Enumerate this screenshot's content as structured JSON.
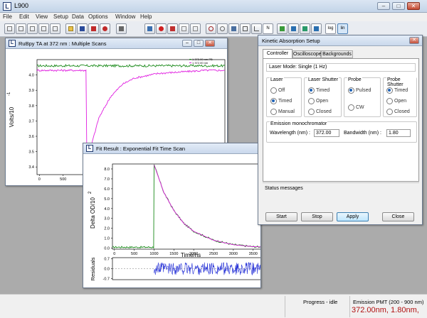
{
  "app": {
    "title": "L900",
    "icon_letter": "L"
  },
  "window_buttons": [
    "–",
    "□",
    "✕"
  ],
  "menu": [
    "File",
    "Edit",
    "View",
    "Setup",
    "Data",
    "Options",
    "Window",
    "Help"
  ],
  "toolbar": {
    "log_label": "log",
    "lin_label": "lin",
    "n_label": "N"
  },
  "scan_window": {
    "title": "RuBpy TA at 372 nm : Multiple Scans",
    "ylabel": "Volts/10",
    "ylabel_exp": "-1",
    "legend": [
      "1 372.00 nm PB",
      "1 372.00 nm"
    ],
    "colors": {
      "pb": "#1a8a1a",
      "trace": "#e01ee0"
    }
  },
  "fit_window": {
    "title": "Fit Result : Exponential Fit Time Scan",
    "ylabel": "Delta OD/10",
    "ylabel_exp": "2",
    "xlabel": "Time/ns",
    "residuals_label": "Residuals",
    "colors": {
      "data": "#1a8a1a",
      "fit": "#e01ee0",
      "residuals": "#1f2bd6"
    }
  },
  "kinetic": {
    "title": "Kinetic Absorption Setup",
    "tabs": [
      "Controller",
      "Oscilloscope",
      "Backgrounds"
    ],
    "laser_mode": "Laser Mode: Single (1 Hz)",
    "groups": {
      "laser": {
        "label": "Laser",
        "options": [
          "Off",
          "Timed",
          "Manual"
        ],
        "selected": 1
      },
      "shutter": {
        "label": "Laser Shutter",
        "options": [
          "Timed",
          "Open",
          "Closed"
        ],
        "selected": 0
      },
      "probe": {
        "label": "Probe",
        "options": [
          "Pulsed",
          "CW"
        ],
        "selected": 0
      },
      "probe_shutter": {
        "label": "Probe Shutter",
        "options": [
          "Timed",
          "Open",
          "Closed"
        ],
        "selected": 0
      }
    },
    "emission": {
      "label": "Emission monochromator",
      "wavelength_label": "Wavelength (nm) :",
      "wavelength_value": "372.00",
      "bandwidth_label": "Bandwidth (nm) :",
      "bandwidth_value": "1.80"
    },
    "status_label": "Status messages",
    "buttons": {
      "start": "Start",
      "stop": "Stop",
      "apply": "Apply",
      "close": "Close"
    }
  },
  "statusbar": {
    "progress": "Progress - idle",
    "detector": "Emission PMT (200 - 900 nm)",
    "readout": "372.00nm,  1.80nm,"
  },
  "chart_data": [
    {
      "type": "line",
      "title": "RuBpy TA at 372 nm : Multiple Scans",
      "xlabel": "",
      "ylabel": "Volts/10^-1",
      "xlim": [
        -50,
        3900
      ],
      "ylim": [
        3.35,
        4.1
      ],
      "xticks": [
        0,
        500,
        1000,
        1500,
        2000,
        2500,
        3000,
        3500
      ],
      "yticks": [
        3.4,
        3.5,
        3.6,
        3.7,
        3.8,
        3.9,
        4.0
      ],
      "legend": "top-right",
      "series": [
        {
          "name": "1 372.00 nm PB",
          "x": [
            -50,
            500,
            1000,
            1500,
            2000,
            2500,
            3000,
            3500,
            3900
          ],
          "y": [
            4.06,
            4.06,
            4.06,
            4.06,
            4.06,
            4.06,
            4.06,
            4.06,
            4.06
          ]
        },
        {
          "name": "1 372.00 nm",
          "x": [
            -50,
            500,
            980,
            1000,
            1100,
            1250,
            1500,
            1750,
            2000,
            2500,
            3000,
            3500,
            3900
          ],
          "y": [
            4.03,
            4.03,
            4.03,
            3.37,
            3.55,
            3.72,
            3.86,
            3.94,
            3.98,
            4.01,
            4.02,
            4.03,
            4.03
          ]
        }
      ]
    },
    {
      "type": "line",
      "title": "Fit Result : Exponential Fit Time Scan",
      "xlabel": "Time/ns",
      "ylabel": "Delta OD/10^2",
      "xlim": [
        -50,
        3900
      ],
      "ylim": [
        -0.1,
        8.5
      ],
      "xticks": [
        0,
        500,
        1000,
        1500,
        2000,
        2500,
        3000,
        3500
      ],
      "yticks": [
        0,
        1,
        2,
        3,
        4,
        5,
        6,
        7,
        8
      ],
      "series": [
        {
          "name": "data",
          "x": [
            -50,
            500,
            990,
            1000,
            1250,
            1500,
            1750,
            2000,
            2500,
            3000,
            3500,
            3900
          ],
          "y": [
            0.1,
            0.1,
            0.1,
            8.4,
            5.6,
            3.8,
            2.5,
            1.7,
            0.8,
            0.35,
            0.15,
            0.1
          ]
        },
        {
          "name": "fit",
          "x": [
            1000,
            1250,
            1500,
            1750,
            2000,
            2500,
            3000,
            3500,
            3900
          ],
          "y": [
            8.4,
            5.6,
            3.8,
            2.5,
            1.7,
            0.8,
            0.35,
            0.15,
            0.1
          ]
        }
      ],
      "residuals": {
        "ylim": [
          -0.77,
          0.77
        ],
        "yticks": [
          0.7,
          0.0,
          -0.7
        ],
        "x_start": 1000,
        "x_end": 3900
      }
    }
  ]
}
